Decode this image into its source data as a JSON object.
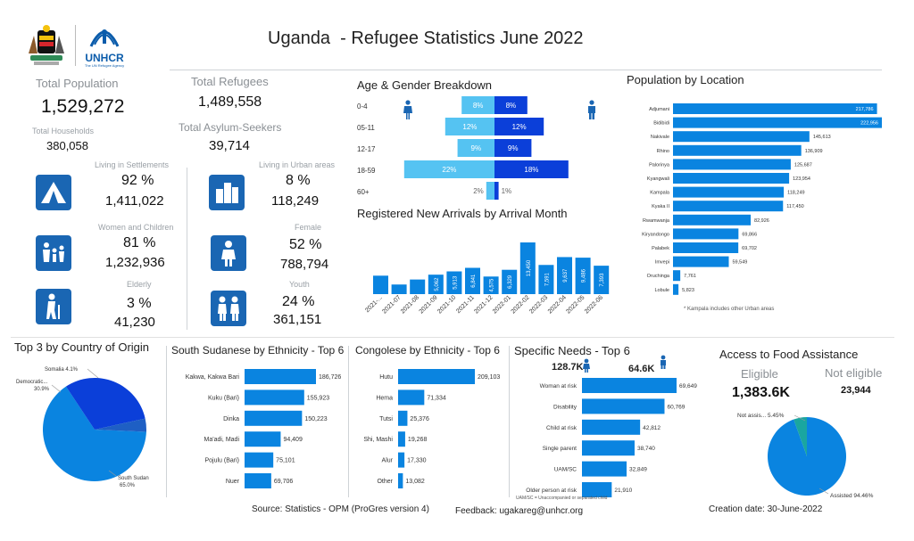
{
  "header": {
    "title": "Uganda  - Refugee Statistics June 2022",
    "unhcr_logo_text": "UNHCR",
    "unhcr_logo_sub": "The UN Refugee Agency"
  },
  "kpis": {
    "total_population_label": "Total Population",
    "total_population": "1,529,272",
    "total_refugees_label": "Total Refugees",
    "total_refugees": "1,489,558",
    "total_households_label": "Total Households",
    "total_households": "380,058",
    "total_asylum_label": "Total Asylum-Seekers",
    "total_asylum": "39,714",
    "settlements_label": "Living in Settlements",
    "settlements_pct": "92 %",
    "settlements_val": "1,411,022",
    "urban_label": "Living in Urban areas",
    "urban_pct": "8 %",
    "urban_val": "118,249",
    "women_children_label": "Women and Children",
    "women_children_pct": "81 %",
    "women_children_val": "1,232,936",
    "female_label": "Female",
    "female_pct": "52 %",
    "female_val": "788,794",
    "elderly_label": "Elderly",
    "elderly_pct": "3 %",
    "elderly_val": "41,230",
    "youth_label": "Youth",
    "youth_pct": "24 %",
    "youth_val": "361,151"
  },
  "footer": {
    "source": "Source: Statistics - OPM (ProGres version 4)",
    "feedback": "Feedback: ugakareg@unhcr.org",
    "creation": "Creation date: 30-June-2022"
  },
  "colors": {
    "dark_blue": "#1a66b3",
    "mid_blue": "#0a84e0",
    "light_blue": "#55c3f2",
    "royal_blue": "#0b3fd9",
    "teal": "#1aa6a0"
  },
  "chart_data": [
    {
      "id": "age_gender",
      "type": "bar",
      "title": "Age & Gender Breakdown",
      "categories": [
        "0-4",
        "05-11",
        "12-17",
        "18-59",
        "60+"
      ],
      "series": [
        {
          "values": [
            8,
            12,
            9,
            22,
            2
          ],
          "labels": [
            "8%",
            "12%",
            "9%",
            "22%",
            "2%"
          ]
        },
        {
          "values": [
            8,
            12,
            9,
            18,
            1
          ],
          "labels": [
            "8%",
            "12%",
            "9%",
            "18%",
            "1%"
          ]
        }
      ]
    },
    {
      "id": "arrivals",
      "type": "bar",
      "title": "Registered New Arrivals by Arrival Month",
      "categories": [
        "2021-...",
        "2021-07",
        "2021-08",
        "2021-09",
        "2021-10",
        "2021-11",
        "2021-12",
        "2022-01",
        "2022-02",
        "2022-03",
        "2022-04",
        "2022-05",
        "2022-06"
      ],
      "values": [
        4800,
        2500,
        3800,
        5062,
        5913,
        6841,
        4575,
        6329,
        13450,
        7591,
        9637,
        9486,
        7393
      ],
      "labels": [
        "",
        "",
        "",
        "5,062",
        "5,913",
        "6,841",
        "4,575",
        "6,329",
        "13,450",
        "7,591",
        "9,637",
        "9,486",
        "7,393"
      ]
    },
    {
      "id": "location",
      "type": "bar",
      "title": "Population by Location",
      "categories": [
        "Adjumani",
        "Bidibidi",
        "Nakivale",
        "Rhino",
        "Palorinya",
        "Kyangwali",
        "Kampala",
        "Kyaka II",
        "Rwamwanja",
        "Kiryandongo",
        "Palabek",
        "Imvepi",
        "Oruchinga",
        "Lobule"
      ],
      "values": [
        217786,
        222956,
        145613,
        136909,
        125687,
        123954,
        118249,
        117450,
        82926,
        69866,
        69702,
        59549,
        7761,
        5823
      ],
      "labels": [
        "217,786",
        "222,956",
        "145,613",
        "136,909",
        "125,687",
        "123,954",
        "118,249",
        "117,450",
        "82,926",
        "69,866",
        "69,702",
        "59,549",
        "7,761",
        "5,823"
      ],
      "note": "* Kampala includes other Urban areas"
    },
    {
      "id": "origin",
      "type": "pie",
      "title": "Top 3 by Country of Origin",
      "slices": [
        {
          "name": "South Sudan",
          "value": 65.0,
          "label": "65.0%"
        },
        {
          "name": "Democratic...",
          "value": 30.9,
          "label": "30.9%"
        },
        {
          "name": "Somalia",
          "value": 4.1,
          "label": "4.1%"
        }
      ]
    },
    {
      "id": "ss_ethnicity",
      "type": "bar",
      "title": "South Sudanese by Ethnicity - Top 6",
      "categories": [
        "Kakwa, Kakwa Bari",
        "Kuku (Bari)",
        "Dinka",
        "Ma'adi, Madi",
        "Pojulu (Bari)",
        "Nuer"
      ],
      "values": [
        186726,
        155923,
        150223,
        94409,
        75101,
        69706
      ],
      "labels": [
        "186,726",
        "155,923",
        "150,223",
        "94,409",
        "75,101",
        "69,706"
      ]
    },
    {
      "id": "congo_ethnicity",
      "type": "bar",
      "title": "Congolese by Ethnicity - Top 6",
      "categories": [
        "Hutu",
        "Hema",
        "Tutsi",
        "Shi, Mashi",
        "Alur",
        "Other"
      ],
      "values": [
        209103,
        71334,
        25376,
        19268,
        17330,
        13082
      ],
      "labels": [
        "209,103",
        "71,334",
        "25,376",
        "19,268",
        "17,330",
        "13,082"
      ]
    },
    {
      "id": "specific_needs",
      "type": "bar",
      "title": "Specific Needs - Top 6",
      "header_female": "128.7K",
      "header_male": "64.6K",
      "categories": [
        "Woman at risk",
        "Disability",
        "Child at risk",
        "Single parent",
        "UAM/SC",
        "Older person at risk"
      ],
      "values": [
        69649,
        60769,
        42812,
        38740,
        32849,
        21910
      ],
      "labels": [
        "69,649",
        "60,769",
        "42,812",
        "38,740",
        "32,849",
        "21,910"
      ],
      "note": "UAM/SC = Unaccompanied or separated child"
    },
    {
      "id": "food",
      "type": "pie",
      "title": "Access to Food Assistance",
      "eligible_label": "Eligible",
      "eligible_value": "1,383.6K",
      "not_eligible_label": "Not eligible",
      "not_eligible_value": "23,944",
      "slices": [
        {
          "name": "Assisted",
          "value": 94.46,
          "label": "Assisted 94.46%"
        },
        {
          "name": "Not assis...",
          "value": 5.45,
          "label": "Not assis... 5.45%"
        }
      ]
    }
  ]
}
